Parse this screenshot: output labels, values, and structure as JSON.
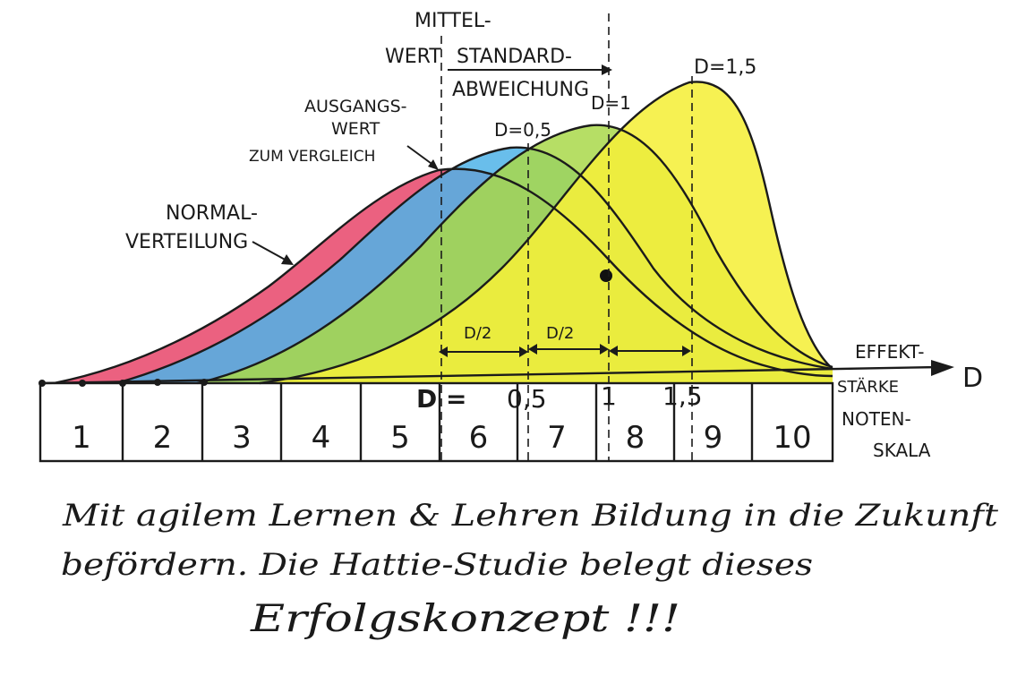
{
  "labels": {
    "mittelwert_line1": "MITTEL-",
    "mittelwert_line2": "WERT",
    "standard_line1": "STANDARD-",
    "standard_line2": "ABWEICHUNG",
    "ausgangswert_line1": "AUSGANGS-",
    "ausgangswert_line2": "WERT",
    "ausgangswert_line3": "ZUM VERGLEICH",
    "normal_line1": "NORMAL-",
    "normal_line2": "VERTEILUNG",
    "effekt_line1": "EFFEKT-",
    "effekt_line2": "STÄRKE",
    "effekt_symbol": "D",
    "noten_line1": "NOTEN-",
    "noten_line2": "SKALA",
    "curve_d05": "D=0,5",
    "curve_d1": "D=1",
    "curve_d15": "D=1,5",
    "half_d_1": "D/2",
    "half_d_2": "D/2",
    "axis_d_prefix": "D =",
    "axis_d_05": "0,5",
    "axis_d_1": "1",
    "axis_d_15": "1,5"
  },
  "grade_scale": [
    "1",
    "2",
    "3",
    "4",
    "5",
    "6",
    "7",
    "8",
    "9",
    "10"
  ],
  "curves": [
    {
      "id": "baseline",
      "label": "NORMAL-VERTEILUNG",
      "color": "#e8456a"
    },
    {
      "id": "d05",
      "label": "D=0,5",
      "color": "#4fb3e8"
    },
    {
      "id": "d1",
      "label": "D=1",
      "color": "#a9d84a"
    },
    {
      "id": "d15",
      "label": "D=1,5",
      "color": "#f5ef3a"
    }
  ],
  "caption": {
    "line1": "Mit agilem Lernen & Lehren Bildung in die Zukunft",
    "line2": "befördern. Die Hattie-Studie belegt dieses",
    "line3": "Erfolgskonzept !!!"
  }
}
